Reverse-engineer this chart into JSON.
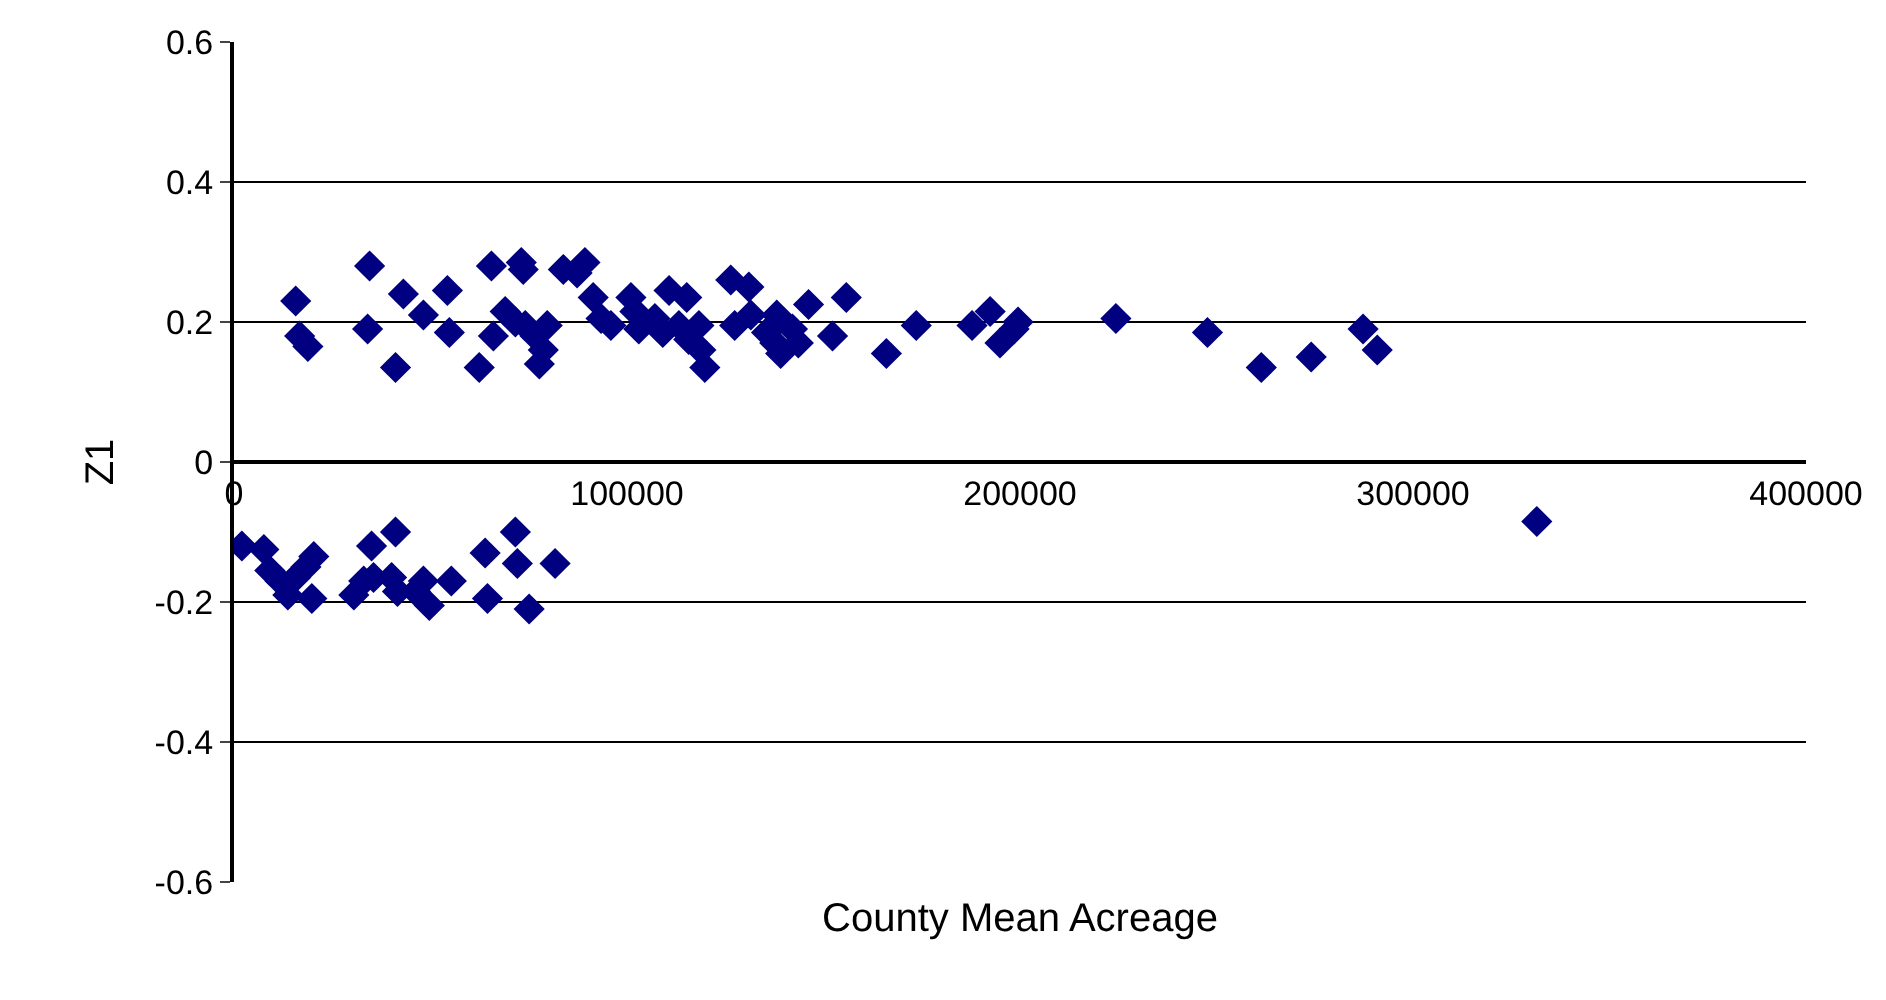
{
  "chart_data": {
    "type": "scatter",
    "xlabel": "County Mean Acreage",
    "ylabel": "Z1",
    "x": [
      15700,
      16700,
      18800,
      34500,
      34000,
      41100,
      43100,
      48200,
      54300,
      54800,
      62400,
      65500,
      66000,
      69000,
      71600,
      73100,
      73600,
      74100,
      77700,
      78700,
      76600,
      79700,
      83800,
      87300,
      89300,
      91400,
      93400,
      95900,
      101000,
      102000,
      103000,
      107100,
      109100,
      110700,
      113200,
      115200,
      115700,
      118300,
      118800,
      119800,
      126400,
      127400,
      131000,
      131500,
      135500,
      137600,
      138100,
      139100,
      142100,
      143600,
      146200,
      152300,
      155800,
      166000,
      173600,
      187800,
      192400,
      194900,
      198500,
      199500,
      224400,
      247700,
      261400,
      274100,
      287300,
      290900,
      2000,
      7600,
      9100,
      11700,
      13700,
      15700,
      18300,
      19800,
      20300,
      30500,
      33000,
      35000,
      35500,
      40100,
      41100,
      41600,
      46200,
      48200,
      49700,
      55300,
      64500,
      63900,
      71600,
      72100,
      75100,
      81700,
      331500
    ],
    "values": [
      0.23,
      0.18,
      0.165,
      0.28,
      0.19,
      0.135,
      0.24,
      0.21,
      0.245,
      0.185,
      0.135,
      0.28,
      0.18,
      0.215,
      0.2,
      0.285,
      0.275,
      0.195,
      0.14,
      0.16,
      0.18,
      0.195,
      0.275,
      0.27,
      0.285,
      0.235,
      0.205,
      0.195,
      0.235,
      0.215,
      0.19,
      0.205,
      0.185,
      0.245,
      0.195,
      0.235,
      0.175,
      0.195,
      0.16,
      0.135,
      0.26,
      0.195,
      0.25,
      0.21,
      0.185,
      0.17,
      0.21,
      0.155,
      0.19,
      0.17,
      0.225,
      0.18,
      0.235,
      0.155,
      0.195,
      0.195,
      0.215,
      0.17,
      0.19,
      0.2,
      0.205,
      0.185,
      0.135,
      0.15,
      0.19,
      0.16,
      -0.12,
      -0.125,
      -0.155,
      -0.17,
      -0.19,
      -0.165,
      -0.15,
      -0.195,
      -0.135,
      -0.19,
      -0.17,
      -0.12,
      -0.165,
      -0.165,
      -0.1,
      -0.185,
      -0.185,
      -0.17,
      -0.205,
      -0.17,
      -0.195,
      -0.13,
      -0.1,
      -0.145,
      -0.21,
      -0.145,
      -0.085
    ],
    "color": "#000080",
    "marker": "diamond",
    "xlim": [
      0,
      400000
    ],
    "xticks": [
      0,
      100000,
      200000,
      300000,
      400000
    ],
    "ylim": [
      -0.6,
      0.6
    ],
    "yticks": [
      -0.6,
      -0.4,
      -0.2,
      0,
      0.2,
      0.4,
      0.6
    ],
    "grid": "y",
    "legend": false
  }
}
